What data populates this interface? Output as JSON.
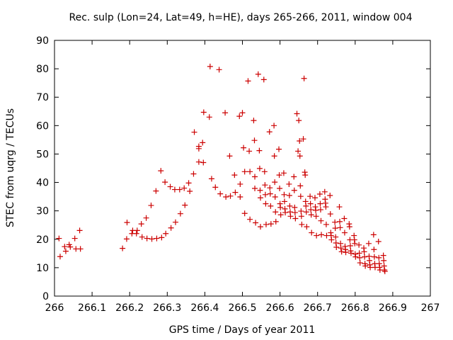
{
  "chart_data": {
    "type": "scatter",
    "title": "Rec. sulp (Lon=24, Lat=49, h=HE), days 265-266, 2011, window 004",
    "xlabel": "GPS time / Days of year 2011",
    "ylabel": "STEC from uqrg / TECUs",
    "xlim": [
      266,
      267
    ],
    "ylim": [
      0,
      90
    ],
    "x_ticks": [
      266,
      266.1,
      266.2,
      266.3,
      266.4,
      266.5,
      266.6,
      266.7,
      266.8,
      266.9,
      267
    ],
    "x_tick_labels": [
      "266",
      "266.1",
      "266.2",
      "266.3",
      "266.4",
      "266.5",
      "266.6",
      "266.7",
      "266.8",
      "266.9",
      "267"
    ],
    "y_ticks": [
      0,
      10,
      20,
      30,
      40,
      50,
      60,
      70,
      80,
      90
    ],
    "y_tick_labels": [
      "0",
      "10",
      "20",
      "30",
      "40",
      "50",
      "60",
      "70",
      "80",
      "90"
    ],
    "grid": false,
    "legend": "none",
    "marker": "plus",
    "color": "#cc0000",
    "points": [
      [
        266.012,
        20.3
      ],
      [
        266.015,
        13.9
      ],
      [
        266.027,
        17.4
      ],
      [
        266.03,
        15.8
      ],
      [
        266.039,
        18.1
      ],
      [
        266.042,
        17.3
      ],
      [
        266.054,
        20.3
      ],
      [
        266.057,
        16.6
      ],
      [
        266.067,
        23.1
      ],
      [
        266.069,
        16.6
      ],
      [
        266.181,
        16.8
      ],
      [
        266.192,
        20.1
      ],
      [
        266.193,
        25.9
      ],
      [
        266.206,
        22.0
      ],
      [
        266.208,
        23.1
      ],
      [
        266.218,
        22.0
      ],
      [
        266.22,
        23.1
      ],
      [
        266.231,
        25.4
      ],
      [
        266.233,
        20.8
      ],
      [
        266.244,
        27.5
      ],
      [
        266.246,
        20.3
      ],
      [
        266.257,
        31.9
      ],
      [
        266.259,
        20.1
      ],
      [
        266.27,
        37.0
      ],
      [
        266.272,
        20.3
      ],
      [
        266.283,
        44.1
      ],
      [
        266.285,
        20.6
      ],
      [
        266.294,
        40.1
      ],
      [
        266.296,
        22.0
      ],
      [
        266.308,
        38.5
      ],
      [
        266.31,
        24.0
      ],
      [
        266.32,
        37.5
      ],
      [
        266.322,
        26.0
      ],
      [
        266.333,
        37.5
      ],
      [
        266.335,
        29.0
      ],
      [
        266.345,
        38.0
      ],
      [
        266.347,
        32.0
      ],
      [
        266.357,
        39.8
      ],
      [
        266.36,
        36.9
      ],
      [
        266.37,
        43.0
      ],
      [
        266.372,
        57.7
      ],
      [
        266.384,
        52.7
      ],
      [
        266.384,
        51.9
      ],
      [
        266.384,
        47.2
      ],
      [
        266.394,
        54.0
      ],
      [
        266.396,
        47.0
      ],
      [
        266.397,
        64.7
      ],
      [
        266.412,
        63.0
      ],
      [
        266.414,
        80.8
      ],
      [
        266.418,
        41.3
      ],
      [
        266.428,
        38.3
      ],
      [
        266.438,
        79.7
      ],
      [
        266.441,
        36.0
      ],
      [
        266.454,
        64.5
      ],
      [
        266.456,
        34.9
      ],
      [
        266.466,
        49.3
      ],
      [
        266.468,
        35.2
      ],
      [
        266.479,
        42.6
      ],
      [
        266.481,
        36.5
      ],
      [
        266.492,
        63.3
      ],
      [
        266.494,
        39.4
      ],
      [
        266.494,
        34.9
      ],
      [
        266.5,
        64.5
      ],
      [
        266.503,
        52.2
      ],
      [
        266.506,
        43.8
      ],
      [
        266.506,
        29.1
      ],
      [
        266.515,
        75.7
      ],
      [
        266.518,
        51.0
      ],
      [
        266.52,
        43.8
      ],
      [
        266.52,
        27.0
      ],
      [
        266.53,
        61.8
      ],
      [
        266.532,
        54.8
      ],
      [
        266.533,
        42.0
      ],
      [
        266.533,
        37.9
      ],
      [
        266.535,
        25.8
      ],
      [
        266.542,
        78.1
      ],
      [
        266.545,
        51.2
      ],
      [
        266.546,
        44.9
      ],
      [
        266.547,
        37.2
      ],
      [
        266.548,
        34.6
      ],
      [
        266.548,
        24.4
      ],
      [
        266.557,
        76.2
      ],
      [
        266.559,
        43.8
      ],
      [
        266.56,
        39.1
      ],
      [
        266.561,
        35.7
      ],
      [
        266.562,
        32.5
      ],
      [
        266.563,
        25.2
      ],
      [
        266.572,
        57.8
      ],
      [
        266.573,
        38.1
      ],
      [
        266.574,
        36.0
      ],
      [
        266.575,
        31.7
      ],
      [
        266.576,
        25.4
      ],
      [
        266.584,
        60.0
      ],
      [
        266.585,
        49.3
      ],
      [
        266.586,
        40.1
      ],
      [
        266.587,
        34.9
      ],
      [
        266.588,
        29.6
      ],
      [
        266.589,
        26.2
      ],
      [
        266.597,
        51.7
      ],
      [
        266.598,
        42.6
      ],
      [
        266.599,
        37.9
      ],
      [
        266.6,
        32.5
      ],
      [
        266.601,
        31.2
      ],
      [
        266.602,
        28.6
      ],
      [
        266.61,
        43.3
      ],
      [
        266.611,
        35.7
      ],
      [
        266.612,
        33.3
      ],
      [
        266.613,
        30.7
      ],
      [
        266.614,
        29.4
      ],
      [
        266.624,
        39.4
      ],
      [
        266.625,
        35.4
      ],
      [
        266.626,
        31.7
      ],
      [
        266.627,
        29.6
      ],
      [
        266.628,
        28.1
      ],
      [
        266.637,
        42.0
      ],
      [
        266.638,
        37.2
      ],
      [
        266.639,
        31.2
      ],
      [
        266.64,
        29.4
      ],
      [
        266.641,
        27.3
      ],
      [
        266.645,
        64.2
      ],
      [
        266.648,
        51.0
      ],
      [
        266.65,
        61.8
      ],
      [
        266.652,
        54.6
      ],
      [
        266.653,
        49.3
      ],
      [
        266.654,
        38.8
      ],
      [
        266.655,
        35.1
      ],
      [
        266.656,
        29.9
      ],
      [
        266.657,
        28.1
      ],
      [
        266.658,
        25.2
      ],
      [
        266.662,
        55.3
      ],
      [
        266.664,
        76.6
      ],
      [
        266.666,
        43.6
      ],
      [
        266.667,
        42.6
      ],
      [
        266.668,
        33.3
      ],
      [
        266.669,
        31.7
      ],
      [
        266.67,
        29.6
      ],
      [
        266.671,
        24.4
      ],
      [
        266.68,
        35.1
      ],
      [
        266.681,
        32.5
      ],
      [
        266.682,
        30.4
      ],
      [
        266.683,
        28.6
      ],
      [
        266.684,
        22.3
      ],
      [
        266.693,
        34.6
      ],
      [
        266.694,
        31.4
      ],
      [
        266.695,
        30.2
      ],
      [
        266.696,
        28.1
      ],
      [
        266.697,
        21.3
      ],
      [
        266.706,
        35.9
      ],
      [
        266.707,
        32.5
      ],
      [
        266.708,
        30.4
      ],
      [
        266.709,
        26.5
      ],
      [
        266.71,
        21.6
      ],
      [
        266.719,
        36.7
      ],
      [
        266.72,
        34.1
      ],
      [
        266.721,
        32.7
      ],
      [
        266.722,
        31.4
      ],
      [
        266.723,
        25.2
      ],
      [
        266.724,
        21.3
      ],
      [
        266.733,
        35.4
      ],
      [
        266.734,
        28.9
      ],
      [
        266.735,
        22.3
      ],
      [
        266.736,
        21.3
      ],
      [
        266.737,
        19.8
      ],
      [
        266.746,
        26.0
      ],
      [
        266.747,
        23.9
      ],
      [
        266.748,
        20.8
      ],
      [
        266.749,
        18.7
      ],
      [
        266.75,
        17.2
      ],
      [
        266.758,
        31.4
      ],
      [
        266.759,
        26.2
      ],
      [
        266.76,
        24.1
      ],
      [
        266.761,
        18.5
      ],
      [
        266.762,
        16.9
      ],
      [
        266.764,
        15.6
      ],
      [
        266.771,
        27.3
      ],
      [
        266.772,
        22.3
      ],
      [
        266.773,
        17.5
      ],
      [
        266.774,
        16.4
      ],
      [
        266.775,
        15.4
      ],
      [
        266.784,
        25.4
      ],
      [
        266.785,
        24.4
      ],
      [
        266.786,
        19.8
      ],
      [
        266.787,
        17.7
      ],
      [
        266.788,
        15.9
      ],
      [
        266.789,
        15.1
      ],
      [
        266.797,
        21.3
      ],
      [
        266.798,
        19.8
      ],
      [
        266.799,
        18.5
      ],
      [
        266.8,
        14.8
      ],
      [
        266.801,
        13.8
      ],
      [
        266.81,
        18.0
      ],
      [
        266.811,
        15.1
      ],
      [
        266.812,
        13.5
      ],
      [
        266.813,
        11.7
      ],
      [
        266.823,
        16.9
      ],
      [
        266.824,
        15.6
      ],
      [
        266.825,
        13.8
      ],
      [
        266.826,
        11.4
      ],
      [
        266.827,
        10.6
      ],
      [
        266.836,
        18.5
      ],
      [
        266.837,
        14.0
      ],
      [
        266.838,
        12.5
      ],
      [
        266.839,
        11.0
      ],
      [
        266.84,
        10.1
      ],
      [
        266.849,
        21.6
      ],
      [
        266.85,
        16.4
      ],
      [
        266.851,
        13.8
      ],
      [
        266.852,
        11.4
      ],
      [
        266.853,
        10.1
      ],
      [
        266.862,
        19.2
      ],
      [
        266.863,
        13.5
      ],
      [
        266.864,
        11.4
      ],
      [
        266.865,
        10.1
      ],
      [
        266.866,
        9.2
      ],
      [
        266.875,
        14.3
      ],
      [
        266.876,
        12.5
      ],
      [
        266.877,
        10.6
      ],
      [
        266.878,
        9.2
      ],
      [
        266.879,
        8.7
      ]
    ]
  }
}
